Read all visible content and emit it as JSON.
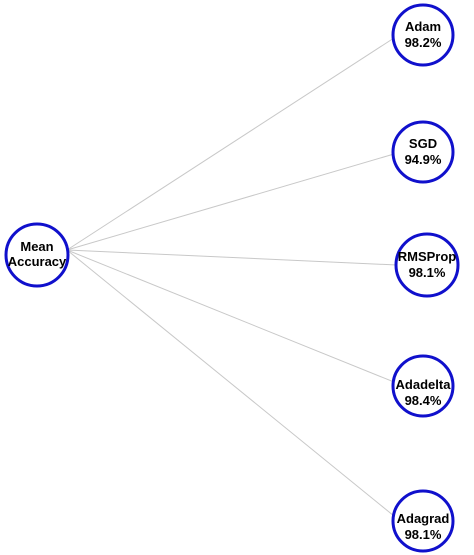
{
  "colors": {
    "node_border": "#1010cc",
    "edge": "#c8c8c8",
    "text": "#000000",
    "background": "#ffffff"
  },
  "diagram": {
    "hub": {
      "lines": [
        "Mean",
        "Accuracy"
      ]
    },
    "leaves": [
      {
        "name": "Adam",
        "value": "98.2%"
      },
      {
        "name": "SGD",
        "value": "94.9%"
      },
      {
        "name": "RMSProp",
        "value": "98.1%"
      },
      {
        "name": "Adadelta",
        "value": "98.4%"
      },
      {
        "name": "Adagrad",
        "value": "98.1%"
      }
    ]
  }
}
